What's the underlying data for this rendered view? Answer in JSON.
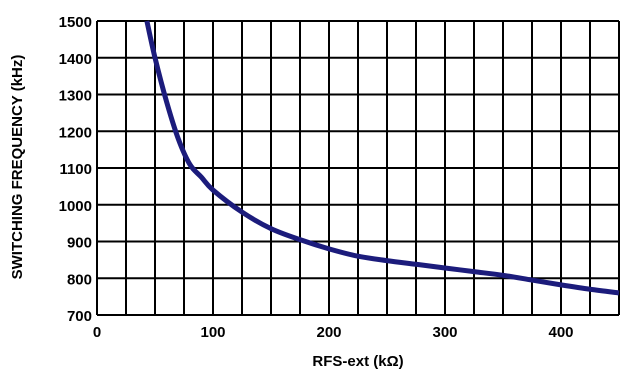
{
  "chart_data": {
    "type": "line",
    "xlabel": "RFS-ext (kΩ)",
    "ylabel": "SWITCHING FREQUENCY (kHz)",
    "xlim": [
      0,
      450
    ],
    "ylim": [
      700,
      1500
    ],
    "x_major_ticks": [
      0,
      100,
      200,
      300,
      400
    ],
    "y_major_ticks": [
      700,
      800,
      900,
      1000,
      1100,
      1200,
      1300,
      1400,
      1500
    ],
    "x_grid_step": 25,
    "y_grid_step": 100,
    "grid": true,
    "legend": "none",
    "series": [
      {
        "color": "#1c1c7c",
        "x": [
          43,
          50,
          60,
          70,
          80,
          90,
          100,
          125,
          150,
          175,
          200,
          225,
          250,
          275,
          300,
          325,
          350,
          375,
          400,
          425,
          450
        ],
        "y": [
          1500,
          1400,
          1280,
          1180,
          1110,
          1075,
          1040,
          980,
          935,
          905,
          880,
          860,
          848,
          838,
          828,
          818,
          808,
          795,
          782,
          770,
          760
        ]
      }
    ]
  }
}
